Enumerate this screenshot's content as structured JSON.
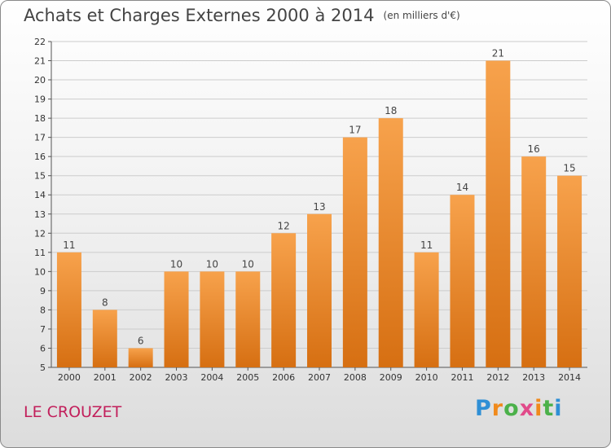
{
  "header": {
    "title": "Achats et Charges Externes 2000 à 2014",
    "unit": "(en milliers d'€)"
  },
  "footer": {
    "place": "LE CROUZET",
    "logo": [
      "P",
      "r",
      "o",
      "x",
      "i",
      "t",
      "i"
    ]
  },
  "colors": {
    "bar_top": "#f7a24c",
    "bar_bottom": "#d66f12",
    "grid": "#cccccc",
    "axis": "#555555",
    "place": "#c21f5b"
  },
  "chart_data": {
    "type": "bar",
    "title": "Achats et Charges Externes 2000 à 2014",
    "subtitle": "(en milliers d'€)",
    "categories": [
      "2000",
      "2001",
      "2002",
      "2003",
      "2004",
      "2005",
      "2006",
      "2007",
      "2008",
      "2009",
      "2010",
      "2011",
      "2012",
      "2013",
      "2014"
    ],
    "values": [
      11,
      8,
      6,
      10,
      10,
      10,
      12,
      13,
      17,
      18,
      11,
      14,
      21,
      16,
      15
    ],
    "ylim": [
      5,
      22
    ],
    "yticks": [
      5,
      6,
      7,
      8,
      9,
      10,
      11,
      12,
      13,
      14,
      15,
      16,
      17,
      18,
      19,
      20,
      21,
      22
    ],
    "grid": true,
    "xlabel": "",
    "ylabel": ""
  }
}
